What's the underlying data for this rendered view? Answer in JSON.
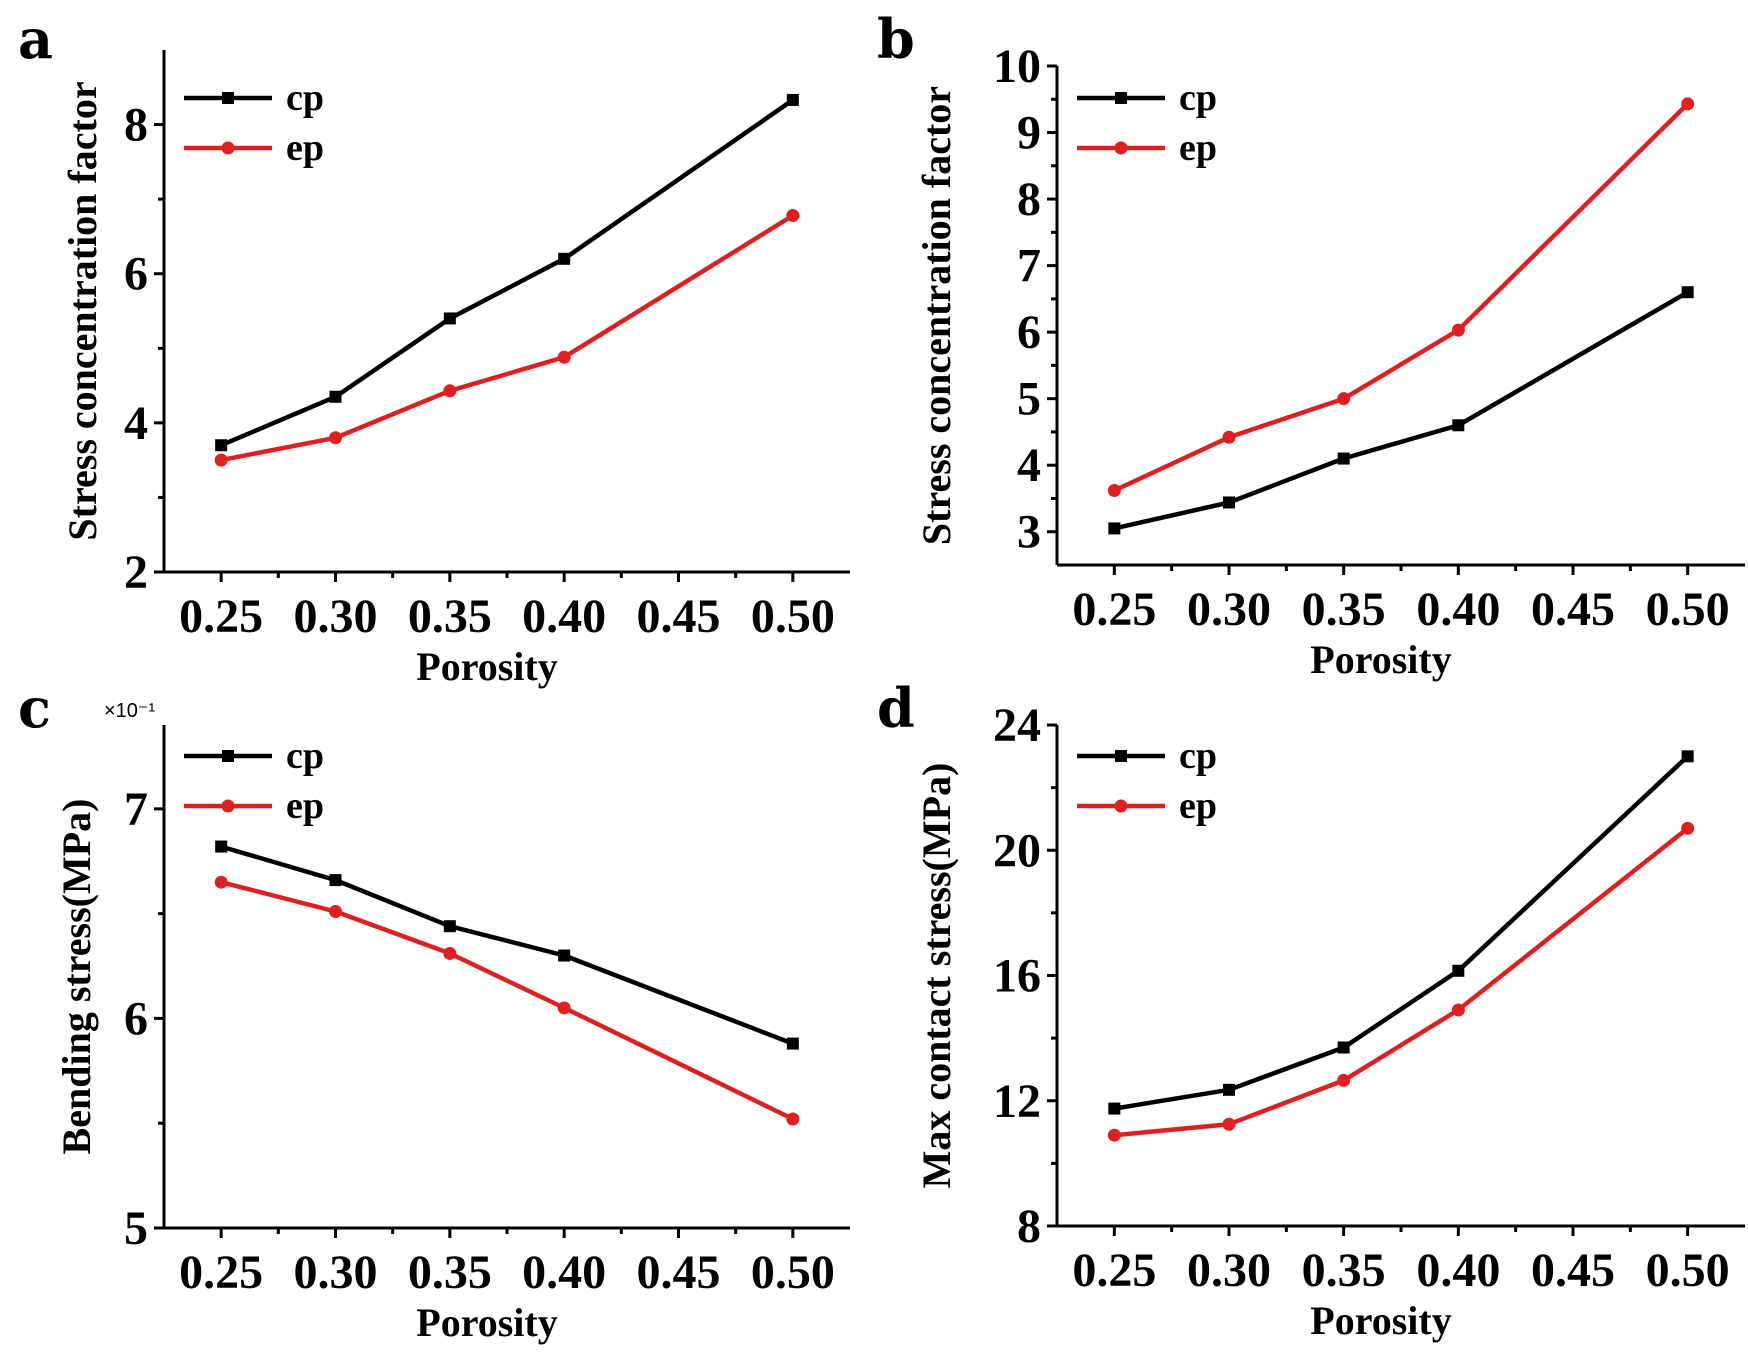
{
  "chart_data": [
    {
      "panel": "a",
      "type": "line",
      "xlabel": "Porosity",
      "ylabel": "Stress concentration factor",
      "xticks": [
        0.25,
        0.3,
        0.35,
        0.4,
        0.45,
        0.5
      ],
      "xtick_labels": [
        "0.25",
        "0.30",
        "0.35",
        "0.40",
        "0.45",
        "0.50"
      ],
      "yticks": [
        2,
        4,
        6,
        8
      ],
      "ytick_labels": [
        "2",
        "4",
        "6",
        "8"
      ],
      "ylim": [
        2,
        9
      ],
      "xlim": [
        0.225,
        0.525
      ],
      "multiplier": "",
      "legend": "top-left",
      "series": [
        {
          "name": "cp",
          "color": "#000000",
          "marker": "square",
          "x": [
            0.25,
            0.3,
            0.35,
            0.4,
            0.5
          ],
          "values": [
            3.7,
            4.35,
            5.4,
            6.2,
            8.33
          ]
        },
        {
          "name": "ep",
          "color": "#e02020",
          "marker": "circle",
          "x": [
            0.25,
            0.3,
            0.35,
            0.4,
            0.5
          ],
          "values": [
            3.5,
            3.8,
            4.43,
            4.88,
            6.78
          ]
        }
      ]
    },
    {
      "panel": "b",
      "type": "line",
      "xlabel": "Porosity",
      "ylabel": "Stress concentration factor",
      "xticks": [
        0.25,
        0.3,
        0.35,
        0.4,
        0.45,
        0.5
      ],
      "xtick_labels": [
        "0.25",
        "0.30",
        "0.35",
        "0.40",
        "0.45",
        "0.50"
      ],
      "yticks": [
        3,
        4,
        5,
        6,
        7,
        8,
        9,
        10
      ],
      "ytick_labels": [
        "3",
        "4",
        "5",
        "6",
        "7",
        "8",
        "9",
        "10"
      ],
      "ylim": [
        2.5,
        10
      ],
      "xlim": [
        0.225,
        0.525
      ],
      "multiplier": "",
      "legend": "top-left",
      "series": [
        {
          "name": "cp",
          "color": "#000000",
          "marker": "square",
          "x": [
            0.25,
            0.3,
            0.35,
            0.4,
            0.5
          ],
          "values": [
            3.05,
            3.44,
            4.1,
            4.6,
            6.6
          ]
        },
        {
          "name": "ep",
          "color": "#e02020",
          "marker": "circle",
          "x": [
            0.25,
            0.3,
            0.35,
            0.4,
            0.5
          ],
          "values": [
            3.62,
            4.42,
            5.0,
            6.03,
            9.43
          ]
        }
      ]
    },
    {
      "panel": "c",
      "type": "line",
      "xlabel": "Porosity",
      "ylabel": "Bending stress(MPa)",
      "xticks": [
        0.25,
        0.3,
        0.35,
        0.4,
        0.45,
        0.5
      ],
      "xtick_labels": [
        "0.25",
        "0.30",
        "0.35",
        "0.40",
        "0.45",
        "0.50"
      ],
      "yticks": [
        5,
        6,
        7
      ],
      "ytick_labels": [
        "5",
        "6",
        "7"
      ],
      "ylim": [
        5,
        7.4
      ],
      "xlim": [
        0.225,
        0.525
      ],
      "multiplier": "×10⁻¹",
      "legend": "top-left",
      "series": [
        {
          "name": "cp",
          "color": "#000000",
          "marker": "square",
          "x": [
            0.25,
            0.3,
            0.35,
            0.4,
            0.5
          ],
          "values": [
            6.82,
            6.66,
            6.44,
            6.3,
            5.88
          ]
        },
        {
          "name": "ep",
          "color": "#e02020",
          "marker": "circle",
          "x": [
            0.25,
            0.3,
            0.35,
            0.4,
            0.5
          ],
          "values": [
            6.65,
            6.51,
            6.31,
            6.05,
            5.52
          ]
        }
      ]
    },
    {
      "panel": "d",
      "type": "line",
      "xlabel": "Porosity",
      "ylabel": "Max contact stress(MPa)",
      "xticks": [
        0.25,
        0.3,
        0.35,
        0.4,
        0.45,
        0.5
      ],
      "xtick_labels": [
        "0.25",
        "0.30",
        "0.35",
        "0.40",
        "0.45",
        "0.50"
      ],
      "yticks": [
        8,
        12,
        16,
        20,
        24
      ],
      "ytick_labels": [
        "8",
        "12",
        "16",
        "20",
        "24"
      ],
      "ylim": [
        8,
        24
      ],
      "xlim": [
        0.225,
        0.525
      ],
      "multiplier": "",
      "legend": "top-left",
      "series": [
        {
          "name": "cp",
          "color": "#000000",
          "marker": "square",
          "x": [
            0.25,
            0.3,
            0.35,
            0.4,
            0.5
          ],
          "values": [
            11.75,
            12.35,
            13.7,
            16.15,
            23.0
          ]
        },
        {
          "name": "ep",
          "color": "#e02020",
          "marker": "circle",
          "x": [
            0.25,
            0.3,
            0.35,
            0.4,
            0.5
          ],
          "values": [
            10.9,
            11.25,
            12.65,
            14.9,
            20.7
          ]
        }
      ]
    }
  ]
}
